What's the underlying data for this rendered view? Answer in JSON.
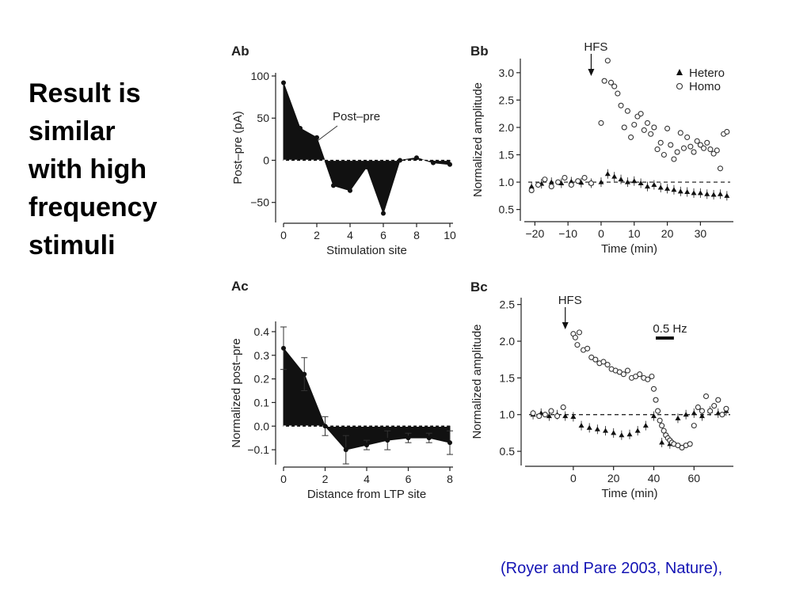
{
  "slide": {
    "title_lines": [
      "Result is",
      "similar",
      "with high",
      "frequency",
      "stimuli"
    ],
    "citation": "(Royer and Pare 2003, Nature),"
  },
  "chart_data": [
    {
      "id": "Ab",
      "panel_label": "Ab",
      "type": "area",
      "xlabel": "Stimulation site",
      "ylabel": "Post–pre (pA)",
      "xlim": [
        0,
        10
      ],
      "ylim": [
        -70,
        100
      ],
      "xticks": [
        "0",
        "2",
        "4",
        "6",
        "8",
        "10"
      ],
      "yticks": [
        "100",
        "50",
        "0",
        "−50"
      ],
      "baseline": 0,
      "annotation": "Post–pre",
      "x": [
        0,
        1,
        2,
        3,
        4,
        5,
        6,
        7,
        8,
        9,
        10
      ],
      "values": [
        92,
        38,
        27,
        -30,
        -36,
        -8,
        -63,
        0,
        3,
        -3,
        -5
      ]
    },
    {
      "id": "Bb",
      "panel_label": "Bb",
      "type": "scatter",
      "xlabel": "Time (min)",
      "ylabel": "Normalized amplitude",
      "xlim": [
        -22,
        39
      ],
      "ylim": [
        0.35,
        3.2
      ],
      "xticks": [
        "−20",
        "−10",
        "0",
        "10",
        "20",
        "30"
      ],
      "yticks": [
        "3.0",
        "2.5",
        "2.0",
        "1.5",
        "1.0",
        "0.5"
      ],
      "reference": 1.0,
      "annotation": "HFS",
      "event_x": -3,
      "legend_placement": "top-right",
      "series": [
        {
          "name": "Hetero",
          "marker": "filled-triangle",
          "x": [
            -21,
            -18,
            -15,
            -12,
            -9,
            -6,
            -3,
            0,
            2,
            4,
            6,
            8,
            10,
            12,
            14,
            16,
            18,
            20,
            22,
            24,
            26,
            28,
            30,
            32,
            34,
            36,
            38
          ],
          "values": [
            0.92,
            0.97,
            1.0,
            0.98,
            1.01,
            0.99,
            0.98,
            1.0,
            1.15,
            1.1,
            1.05,
            1.0,
            1.02,
            0.98,
            0.92,
            0.95,
            0.9,
            0.88,
            0.86,
            0.83,
            0.82,
            0.8,
            0.8,
            0.78,
            0.77,
            0.78,
            0.75
          ]
        },
        {
          "name": "Homo",
          "marker": "open-circle",
          "x": [
            -21,
            -19,
            -17,
            -15,
            -13,
            -11,
            -9,
            -7,
            -5,
            -3,
            0,
            1,
            2,
            3,
            4,
            5,
            6,
            7,
            8,
            9,
            10,
            11,
            12,
            13,
            14,
            15,
            16,
            17,
            18,
            19,
            20,
            21,
            22,
            23,
            24,
            25,
            26,
            27,
            28,
            29,
            30,
            31,
            32,
            33,
            34,
            35,
            36,
            37,
            38
          ],
          "values": [
            0.85,
            0.95,
            1.05,
            0.92,
            1.0,
            1.08,
            0.95,
            1.02,
            1.08,
            0.98,
            2.08,
            2.85,
            3.22,
            2.82,
            2.75,
            2.62,
            2.4,
            2.0,
            2.3,
            1.82,
            2.05,
            2.2,
            2.25,
            1.95,
            2.08,
            1.88,
            2.0,
            1.6,
            1.72,
            1.5,
            1.98,
            1.68,
            1.42,
            1.55,
            1.9,
            1.62,
            1.82,
            1.65,
            1.55,
            1.75,
            1.68,
            1.62,
            1.72,
            1.6,
            1.52,
            1.58,
            1.25,
            1.88,
            1.92
          ]
        }
      ]
    },
    {
      "id": "Ac",
      "panel_label": "Ac",
      "type": "area",
      "xlabel": "Distance from LTP site",
      "ylabel": "Normalized post–pre",
      "xlim": [
        0,
        8
      ],
      "ylim": [
        -0.15,
        0.43
      ],
      "xticks": [
        "0",
        "2",
        "4",
        "6",
        "8"
      ],
      "yticks": [
        "0.4",
        "0.3",
        "0.2",
        "0.1",
        "0.0",
        "−0.1"
      ],
      "baseline": 0,
      "x": [
        0,
        1,
        2,
        3,
        4,
        5,
        6,
        7,
        8
      ],
      "values": [
        0.33,
        0.22,
        0.0,
        -0.1,
        -0.08,
        -0.06,
        -0.05,
        -0.05,
        -0.07
      ],
      "error": [
        0.09,
        0.07,
        0.04,
        0.06,
        0.02,
        0.04,
        0.02,
        0.02,
        0.05
      ]
    },
    {
      "id": "Bc",
      "panel_label": "Bc",
      "type": "scatter",
      "xlabel": "Time (min)",
      "ylabel": "Normalized amplitude",
      "xlim": [
        -22,
        78
      ],
      "ylim": [
        0.35,
        2.55
      ],
      "xticks": [
        "0",
        "20",
        "40",
        "60"
      ],
      "yticks": [
        "2.5",
        "2.0",
        "1.5",
        "1.0",
        "0.5"
      ],
      "reference": 1.0,
      "annotation": "HFS",
      "event_x": -4,
      "stim_label": "0.5 Hz",
      "stim_range": [
        41,
        50
      ],
      "series": [
        {
          "marker": "filled-triangle",
          "x": [
            -20,
            -16,
            -12,
            -8,
            -4,
            0,
            4,
            8,
            12,
            16,
            20,
            24,
            28,
            32,
            36,
            40,
            44,
            48,
            52,
            56,
            60,
            64,
            68,
            72,
            76
          ],
          "values": [
            1.0,
            1.02,
            0.98,
            1.0,
            0.98,
            0.97,
            0.85,
            0.82,
            0.8,
            0.78,
            0.75,
            0.72,
            0.73,
            0.78,
            0.85,
            0.98,
            0.62,
            0.6,
            0.95,
            1.0,
            1.02,
            0.98,
            1.05,
            1.02,
            1.05
          ]
        },
        {
          "marker": "open-circle",
          "x": [
            -20,
            -17,
            -14,
            -11,
            -8,
            -5,
            0,
            1,
            2,
            3,
            5,
            7,
            9,
            11,
            13,
            15,
            17,
            19,
            21,
            23,
            25,
            27,
            29,
            31,
            33,
            35,
            37,
            39,
            40,
            41,
            42,
            43,
            44,
            45,
            46,
            47,
            48,
            49,
            50,
            52,
            54,
            56,
            58,
            60,
            62,
            64,
            66,
            68,
            70,
            72,
            74,
            76
          ],
          "values": [
            1.02,
            0.98,
            1.0,
            1.05,
            0.98,
            1.1,
            2.1,
            2.05,
            1.95,
            2.12,
            1.88,
            1.9,
            1.78,
            1.75,
            1.7,
            1.72,
            1.68,
            1.62,
            1.6,
            1.58,
            1.55,
            1.6,
            1.5,
            1.52,
            1.55,
            1.5,
            1.48,
            1.52,
            1.35,
            1.2,
            1.05,
            0.92,
            0.85,
            0.78,
            0.72,
            0.68,
            0.65,
            0.62,
            0.6,
            0.58,
            0.55,
            0.58,
            0.6,
            0.85,
            1.1,
            1.05,
            1.25,
            1.05,
            1.12,
            1.2,
            1.0,
            1.08
          ]
        }
      ]
    }
  ]
}
